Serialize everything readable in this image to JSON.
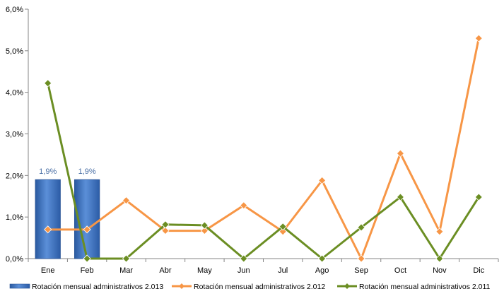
{
  "chart_data": {
    "type": "bar+line",
    "title": "",
    "xlabel": "",
    "ylabel": "",
    "categories": [
      "Ene",
      "Feb",
      "Mar",
      "Abr",
      "May",
      "Jun",
      "Jul",
      "Ago",
      "Sep",
      "Oct",
      "Nov",
      "Dic"
    ],
    "ylim": [
      0,
      6
    ],
    "y_ticks": [
      0,
      1,
      2,
      3,
      4,
      5,
      6
    ],
    "y_tick_labels": [
      "0,0%",
      "1,0%",
      "2,0%",
      "3,0%",
      "4,0%",
      "5,0%",
      "6,0%"
    ],
    "grid": false,
    "legend_position": "bottom",
    "series": [
      {
        "name": "Rotación mensual administrativos 2.013",
        "kind": "bar",
        "color": "#3a72c4",
        "values": [
          1.9,
          1.9,
          null,
          null,
          null,
          null,
          null,
          null,
          null,
          null,
          null,
          null
        ],
        "data_labels": [
          "1,9%",
          "1,9%",
          "",
          "",
          "",
          "",
          "",
          "",
          "",
          "",
          "",
          ""
        ]
      },
      {
        "name": "Rotación mensual administrativos 2.012",
        "kind": "line",
        "color": "#f79646",
        "values": [
          0.7,
          0.7,
          1.4,
          0.67,
          0.67,
          1.28,
          0.65,
          1.88,
          0.0,
          2.53,
          0.65,
          5.3
        ]
      },
      {
        "name": "Rotación mensual administrativos 2.011",
        "kind": "line",
        "color": "#6b8e23",
        "values": [
          4.22,
          0.0,
          0.0,
          0.82,
          0.8,
          0.0,
          0.77,
          0.0,
          0.75,
          1.48,
          0.0,
          1.48
        ]
      }
    ]
  }
}
